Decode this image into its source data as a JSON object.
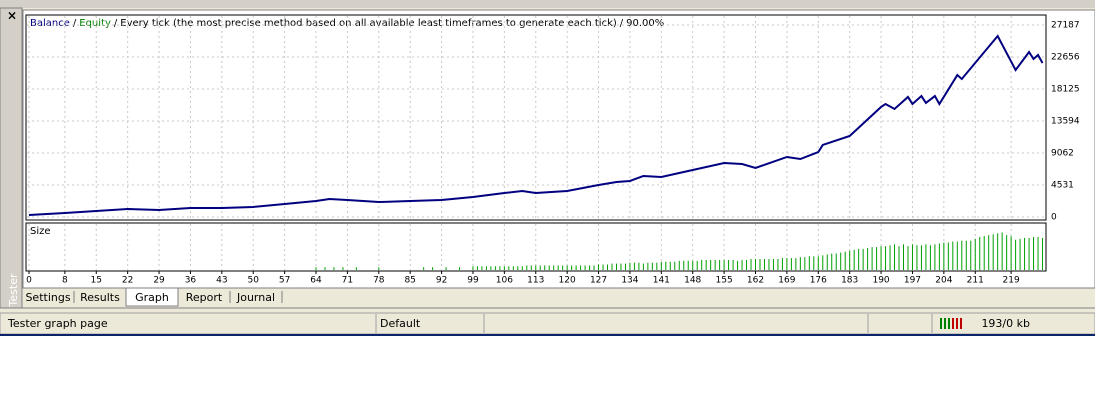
{
  "window": {
    "close": "×",
    "side_label": "Tester",
    "tabs": [
      "Settings",
      "Results",
      "Graph",
      "Report",
      "Journal"
    ],
    "active_tab": 2,
    "status": [
      "Tester graph page",
      "Default",
      "193/0 kb"
    ]
  },
  "chart_data": [
    {
      "type": "line",
      "separator": "/",
      "legend": [
        "Balance",
        "Equity"
      ],
      "legend_colors": [
        "#000080",
        "#008000"
      ],
      "subtitle": "Every tick (the most precise method based on all available least timeframes to generate each tick)",
      "quality": "90.00%",
      "x": [
        0,
        8,
        15,
        22,
        29,
        36,
        43,
        50,
        57,
        64,
        67,
        71,
        78,
        85,
        92,
        99,
        106,
        110,
        113,
        120,
        127,
        131,
        134,
        137,
        141,
        148,
        155,
        159,
        162,
        169,
        172,
        176,
        177,
        183,
        190,
        191,
        193,
        196,
        197,
        199,
        200,
        202,
        203,
        207,
        208,
        216,
        220,
        223,
        224,
        225,
        226
      ],
      "series": [
        {
          "name": "Balance",
          "color": "#000080",
          "values": [
            280,
            570,
            850,
            1130,
            990,
            1270,
            1270,
            1420,
            1840,
            2270,
            2550,
            2410,
            2120,
            2270,
            2410,
            2830,
            3400,
            3680,
            3400,
            3680,
            4530,
            4960,
            5100,
            5810,
            5660,
            6650,
            7650,
            7500,
            6940,
            8500,
            8210,
            9200,
            10200,
            11470,
            15580,
            16000,
            15300,
            17000,
            16000,
            17130,
            16150,
            17130,
            16000,
            20100,
            19540,
            25630,
            20810,
            23360,
            22370,
            22940,
            21800
          ]
        }
      ],
      "xlim": [
        0,
        227
      ],
      "ylim": [
        0,
        27187
      ],
      "yticks": [
        0,
        4531,
        9062,
        13594,
        18125,
        22656,
        27187
      ],
      "grid": true
    },
    {
      "type": "bar",
      "title": "Size",
      "color": "#00a000",
      "x": [
        64,
        66,
        68,
        70,
        73,
        78,
        88,
        90,
        93,
        96,
        99,
        100,
        101,
        102,
        103,
        104,
        105,
        106,
        107,
        108,
        109,
        110,
        111,
        112,
        113,
        114,
        115,
        116,
        117,
        118,
        119,
        120,
        121,
        122,
        123,
        124,
        125,
        126,
        127,
        128,
        129,
        130,
        131,
        132,
        133,
        134,
        135,
        136,
        137,
        138,
        139,
        140,
        141,
        142,
        143,
        144,
        145,
        146,
        147,
        148,
        149,
        150,
        151,
        152,
        153,
        154,
        155,
        156,
        157,
        158,
        159,
        160,
        161,
        162,
        163,
        164,
        165,
        166,
        167,
        168,
        169,
        170,
        171,
        172,
        173,
        174,
        175,
        176,
        177,
        178,
        179,
        180,
        181,
        182,
        183,
        184,
        185,
        186,
        187,
        188,
        189,
        190,
        191,
        192,
        193,
        194,
        195,
        196,
        197,
        198,
        199,
        200,
        201,
        202,
        203,
        204,
        205,
        206,
        207,
        208,
        209,
        210,
        211,
        212,
        213,
        214,
        215,
        216,
        217,
        218,
        219,
        220,
        221,
        222,
        223,
        224,
        225,
        226
      ],
      "values": [
        3,
        3,
        3,
        3,
        3,
        3,
        3,
        3,
        3,
        3,
        4,
        4,
        4,
        4,
        4,
        4,
        4,
        4,
        4,
        4,
        4,
        4,
        5,
        5,
        5,
        5,
        5,
        5,
        5,
        5,
        5,
        5,
        5,
        5,
        5,
        5,
        5,
        5,
        6,
        6,
        6,
        7,
        7,
        7,
        7,
        8,
        8,
        8,
        7,
        8,
        8,
        8,
        9,
        9,
        9,
        9,
        10,
        10,
        10,
        10,
        10,
        11,
        11,
        11,
        11,
        11,
        11,
        11,
        11,
        10,
        11,
        11,
        12,
        12,
        12,
        12,
        12,
        12,
        12,
        13,
        13,
        13,
        13,
        14,
        14,
        15,
        15,
        15,
        16,
        17,
        18,
        18,
        19,
        20,
        21,
        22,
        23,
        23,
        24,
        25,
        25,
        26,
        26,
        27,
        28,
        26,
        28,
        26,
        28,
        27,
        27,
        28,
        27,
        28,
        29,
        30,
        30,
        31,
        31,
        32,
        32,
        32,
        34,
        36,
        37,
        38,
        39,
        40,
        41,
        38,
        37,
        33,
        34,
        35,
        35,
        36,
        36,
        35
      ],
      "xlim": [
        0,
        227
      ],
      "ylim": [
        0,
        48
      ],
      "xticks": [
        0,
        8,
        15,
        22,
        29,
        36,
        43,
        50,
        57,
        64,
        71,
        78,
        85,
        92,
        99,
        106,
        113,
        120,
        127,
        134,
        141,
        148,
        155,
        162,
        169,
        176,
        183,
        190,
        197,
        204,
        211,
        219
      ]
    }
  ]
}
